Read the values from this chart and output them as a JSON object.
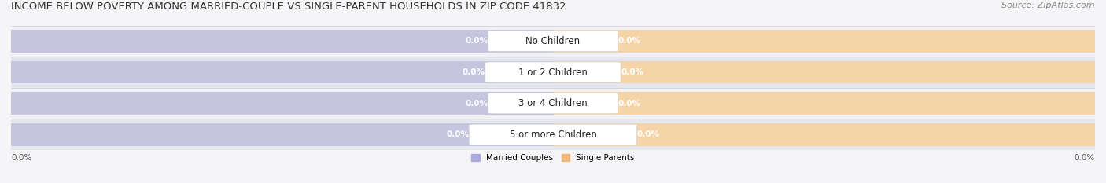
{
  "title": "INCOME BELOW POVERTY AMONG MARRIED-COUPLE VS SINGLE-PARENT HOUSEHOLDS IN ZIP CODE 41832",
  "source": "Source: ZipAtlas.com",
  "categories": [
    "No Children",
    "1 or 2 Children",
    "3 or 4 Children",
    "5 or more Children"
  ],
  "married_values": [
    0.0,
    0.0,
    0.0,
    0.0
  ],
  "single_values": [
    0.0,
    0.0,
    0.0,
    0.0
  ],
  "married_color": "#aaaadd",
  "single_color": "#f0b87a",
  "row_bg_light": "#f0f0f5",
  "row_bg_dark": "#e6e6ef",
  "bar_full_married": "#c5c5e0",
  "bar_full_single": "#f5d5a8",
  "title_fontsize": 9.5,
  "source_fontsize": 8,
  "label_fontsize": 7.5,
  "category_fontsize": 8.5,
  "xlim_left": -1.0,
  "xlim_right": 1.0,
  "axis_label_left": "0.0%",
  "axis_label_right": "0.0%",
  "legend_married": "Married Couples",
  "legend_single": "Single Parents",
  "background_color": "#f5f5f8"
}
